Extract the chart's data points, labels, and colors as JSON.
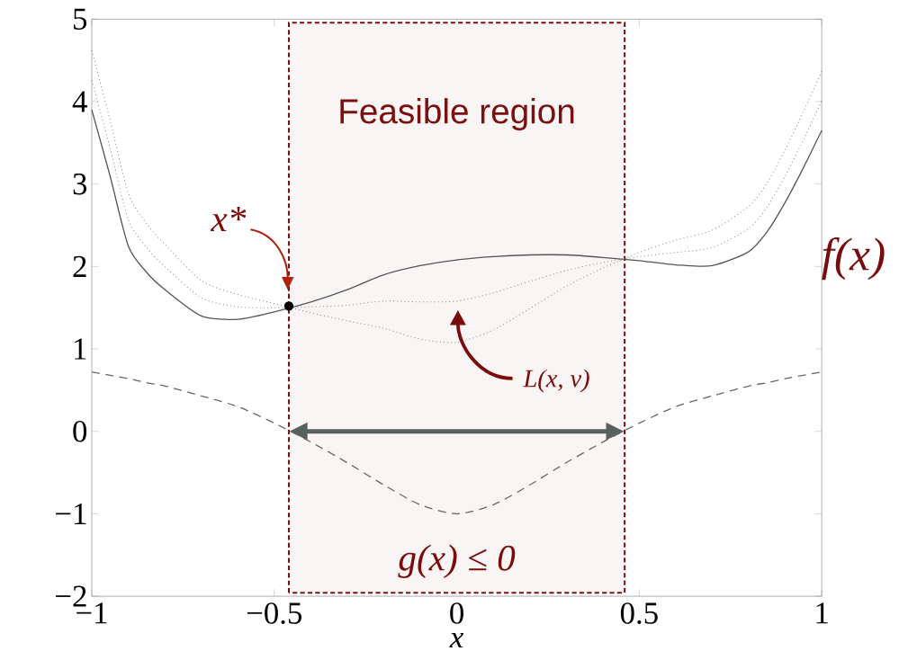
{
  "chart_data": {
    "type": "line",
    "xlabel": "x",
    "xlim": [
      -1,
      1
    ],
    "ylim": [
      -2,
      5
    ],
    "xticks": [
      {
        "value": -1,
        "label": "−1"
      },
      {
        "value": -0.5,
        "label": "−0.5"
      },
      0,
      0.5,
      1
    ],
    "yticks": [
      {
        "value": -2,
        "label": "−2"
      },
      {
        "value": -1,
        "label": "−1"
      },
      0,
      1,
      2,
      3,
      4,
      5
    ],
    "x": [
      -1,
      -0.95,
      -0.9,
      -0.85,
      -0.8,
      -0.7,
      -0.6,
      -0.5,
      -0.4,
      -0.3,
      -0.2,
      -0.1,
      0,
      0.1,
      0.2,
      0.3,
      0.4,
      0.5,
      0.6,
      0.7,
      0.8,
      0.85,
      0.9,
      0.95,
      1
    ],
    "series": [
      {
        "color": "#555555",
        "line_style": "solid",
        "values": [
          3.9,
          3.1,
          2.25,
          1.93,
          1.72,
          1.4,
          1.36,
          1.45,
          1.57,
          1.72,
          1.9,
          2.01,
          2.08,
          2.12,
          2.14,
          2.14,
          2.11,
          2.07,
          2.02,
          2.01,
          2.18,
          2.42,
          2.78,
          3.2,
          3.65
        ]
      },
      {
        "color": "#666666",
        "line_style": "dashed",
        "values": [
          0.72,
          0.68,
          0.64,
          0.59,
          0.55,
          0.43,
          0.3,
          0.1,
          -0.13,
          -0.38,
          -0.65,
          -0.89,
          -1,
          -0.89,
          -0.65,
          -0.38,
          -0.13,
          0.1,
          0.3,
          0.43,
          0.55,
          0.59,
          0.64,
          0.68,
          0.72
        ]
      },
      {
        "color": "#8a8a8a",
        "line_style": "dotted",
        "values": [
          4.62,
          3.78,
          2.89,
          2.52,
          2.27,
          1.83,
          1.66,
          1.55,
          1.44,
          1.34,
          1.25,
          1.12,
          1.08,
          1.23,
          1.49,
          1.76,
          1.98,
          2.17,
          2.32,
          2.44,
          2.73,
          3.01,
          3.42,
          3.88,
          4.37
        ]
      },
      {
        "color": "#8a8a8a",
        "line_style": "dotted",
        "values": [
          4.26,
          3.44,
          2.57,
          2.23,
          2.0,
          1.62,
          1.51,
          1.5,
          1.51,
          1.53,
          1.58,
          1.57,
          1.58,
          1.68,
          1.82,
          1.95,
          2.05,
          2.12,
          2.17,
          2.23,
          2.46,
          2.72,
          3.1,
          3.54,
          4.01
        ]
      },
      {
        "type": "scatter",
        "x": [
          -0.46
        ],
        "values": [
          1.52
        ],
        "color": "#000000",
        "marker": "circle"
      }
    ],
    "bands": [
      {
        "axis": "x",
        "from": -0.46,
        "to": 0.46,
        "label": "Feasible region",
        "color": "#7b1010"
      }
    ],
    "annotations": [
      {
        "text": "x*",
        "x": -0.46,
        "y": 1.52
      },
      "L(x, ν)",
      "g(x) ≤ 0",
      "f(x)"
    ]
  }
}
